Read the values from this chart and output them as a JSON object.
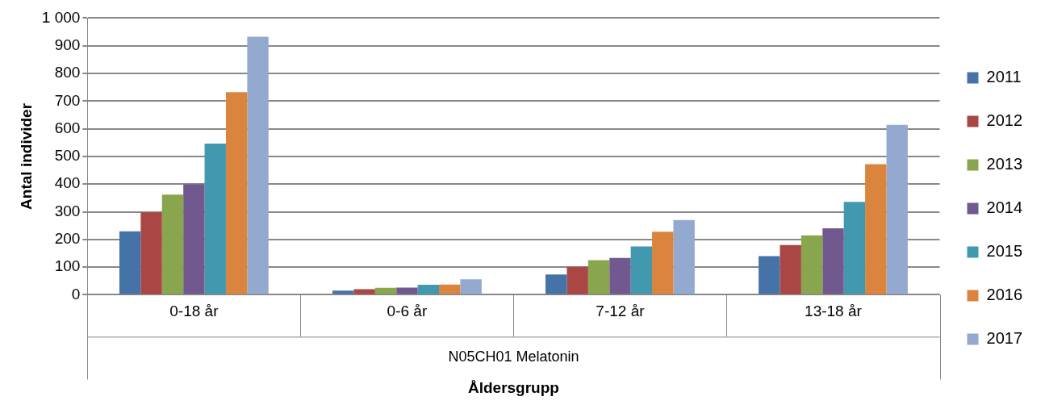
{
  "chart_data": {
    "type": "bar",
    "xlabel": "Åldersgrupp",
    "ylabel": "Antal individer",
    "categories": [
      "0-18 år",
      "0-6 år",
      "7-12 år",
      "13-18 år"
    ],
    "series": [
      {
        "name": "2011",
        "color": "#4572a7",
        "values": [
          229,
          15,
          73,
          140
        ]
      },
      {
        "name": "2012",
        "color": "#aa4643",
        "values": [
          298,
          20,
          101,
          180
        ]
      },
      {
        "name": "2013",
        "color": "#89a54e",
        "values": [
          362,
          25,
          125,
          215
        ]
      },
      {
        "name": "2014",
        "color": "#71588f",
        "values": [
          399,
          26,
          133,
          240
        ]
      },
      {
        "name": "2015",
        "color": "#4198af",
        "values": [
          546,
          36,
          175,
          336
        ]
      },
      {
        "name": "2016",
        "color": "#db843d",
        "values": [
          732,
          37,
          228,
          472
        ]
      },
      {
        "name": "2017",
        "color": "#93a9cf",
        "values": [
          933,
          56,
          270,
          614
        ]
      }
    ],
    "ylim": [
      0,
      1000
    ],
    "yticks": [
      0,
      100,
      200,
      300,
      400,
      500,
      600,
      700,
      800,
      900,
      {
        "value": 1000,
        "label": "1 000"
      }
    ],
    "grid": "y",
    "legend": "right",
    "annotations": [
      "N05CH01 Melatonin"
    ]
  }
}
